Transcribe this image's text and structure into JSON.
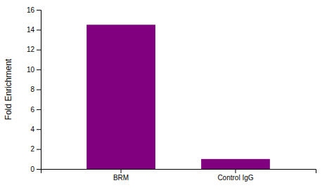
{
  "chart_data": {
    "type": "bar",
    "ylabel": "Fold Enrichment",
    "categories": [
      "BRM",
      "Control IgG"
    ],
    "values": [
      14.5,
      1
    ],
    "color": "#800080",
    "ylim": [
      0,
      16
    ],
    "yticks": [
      0,
      2,
      4,
      6,
      8,
      10,
      12,
      14,
      16
    ],
    "grid": false
  }
}
